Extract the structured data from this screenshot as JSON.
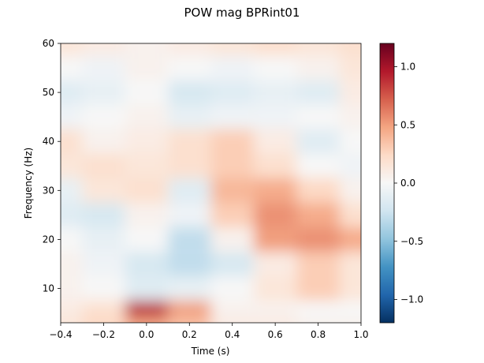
{
  "chart_data": {
    "type": "heatmap",
    "title": "POW mag BPRint01",
    "xlabel": "Time (s)",
    "ylabel": "Frequency (Hz)",
    "xlim": [
      -0.4,
      1.0
    ],
    "ylim": [
      3,
      60
    ],
    "x_ticks": [
      -0.4,
      -0.2,
      0.0,
      0.2,
      0.4,
      0.6,
      0.8,
      1.0
    ],
    "x_tick_labels": [
      "−0.4",
      "−0.2",
      "0.0",
      "0.2",
      "0.4",
      "0.6",
      "0.8",
      "1.0"
    ],
    "y_ticks": [
      10,
      20,
      30,
      40,
      50,
      60
    ],
    "y_tick_labels": [
      "10",
      "20",
      "30",
      "40",
      "50",
      "60"
    ],
    "colormap": "RdBu_r",
    "colorbar": {
      "vmin": -1.2,
      "vmax": 1.2,
      "ticks": [
        -1.0,
        -0.5,
        0.0,
        0.5,
        1.0
      ],
      "tick_labels": [
        "−1.0",
        "−0.5",
        "0.0",
        "0.5",
        "1.0"
      ]
    },
    "grid": false,
    "x": [
      -0.4,
      -0.2,
      0.0,
      0.2,
      0.4,
      0.6,
      0.8,
      1.0
    ],
    "y": [
      3,
      5,
      10,
      15,
      20,
      25,
      30,
      35,
      40,
      45,
      50,
      55,
      60
    ],
    "values": [
      [
        0.15,
        0.25,
        0.45,
        0.35,
        0.1,
        0.1,
        0.05,
        0.05
      ],
      [
        0.1,
        0.2,
        0.9,
        0.5,
        0.05,
        0.05,
        0.0,
        0.0
      ],
      [
        0.05,
        0.0,
        -0.15,
        -0.1,
        0.0,
        0.15,
        0.3,
        0.15
      ],
      [
        0.05,
        -0.05,
        -0.2,
        -0.3,
        -0.2,
        0.1,
        0.3,
        0.15
      ],
      [
        0.0,
        -0.1,
        0.0,
        -0.3,
        0.05,
        0.5,
        0.55,
        0.45
      ],
      [
        -0.15,
        -0.2,
        0.05,
        -0.05,
        0.3,
        0.55,
        0.45,
        0.2
      ],
      [
        -0.1,
        0.15,
        0.2,
        -0.15,
        0.4,
        0.45,
        0.25,
        0.05
      ],
      [
        0.15,
        0.2,
        0.15,
        0.2,
        0.3,
        0.2,
        0.0,
        -0.05
      ],
      [
        0.2,
        0.05,
        0.1,
        0.2,
        0.3,
        0.1,
        -0.15,
        0.0
      ],
      [
        -0.05,
        0.0,
        0.05,
        -0.1,
        -0.05,
        -0.05,
        0.0,
        0.05
      ],
      [
        -0.15,
        -0.1,
        0.0,
        -0.2,
        -0.15,
        -0.1,
        -0.15,
        0.1
      ],
      [
        0.0,
        -0.05,
        0.05,
        0.0,
        -0.05,
        0.0,
        0.05,
        0.15
      ],
      [
        0.15,
        0.1,
        0.05,
        0.1,
        0.15,
        0.2,
        0.15,
        0.2
      ]
    ]
  }
}
